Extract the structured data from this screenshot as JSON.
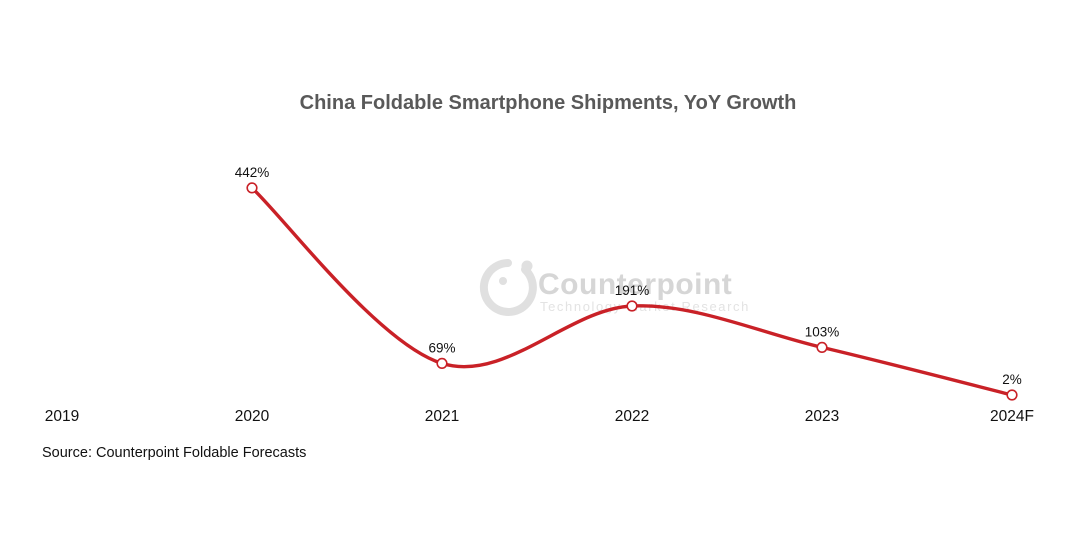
{
  "chart_data": {
    "type": "line",
    "title": "China Foldable Smartphone Shipments, YoY Growth",
    "categories": [
      "2019",
      "2020",
      "2021",
      "2022",
      "2023",
      "2024F"
    ],
    "series": [
      {
        "name": "YoY Growth",
        "values": [
          null,
          442,
          69,
          191,
          103,
          2
        ],
        "point_labels": [
          "",
          "442%",
          "69%",
          "191%",
          "103%",
          "2%"
        ],
        "color": "#c92127",
        "marker": "open-circle",
        "smooth": true
      }
    ],
    "ylabel": "",
    "xlabel": "",
    "ylim": [
      0,
      500
    ],
    "grid": false,
    "legend": "none",
    "source": "Source: Counterpoint Foldable Forecasts"
  },
  "watermark": {
    "brand": "Counterpoint",
    "tagline": "Technology Market Research",
    "logo_color": "#e0e0e0",
    "brand_color": "#d6d6d6",
    "tagline_color": "#e3e3e3"
  },
  "colors": {
    "line": "#c92127",
    "title": "#595959",
    "text": "#111111",
    "background": "#ffffff"
  }
}
